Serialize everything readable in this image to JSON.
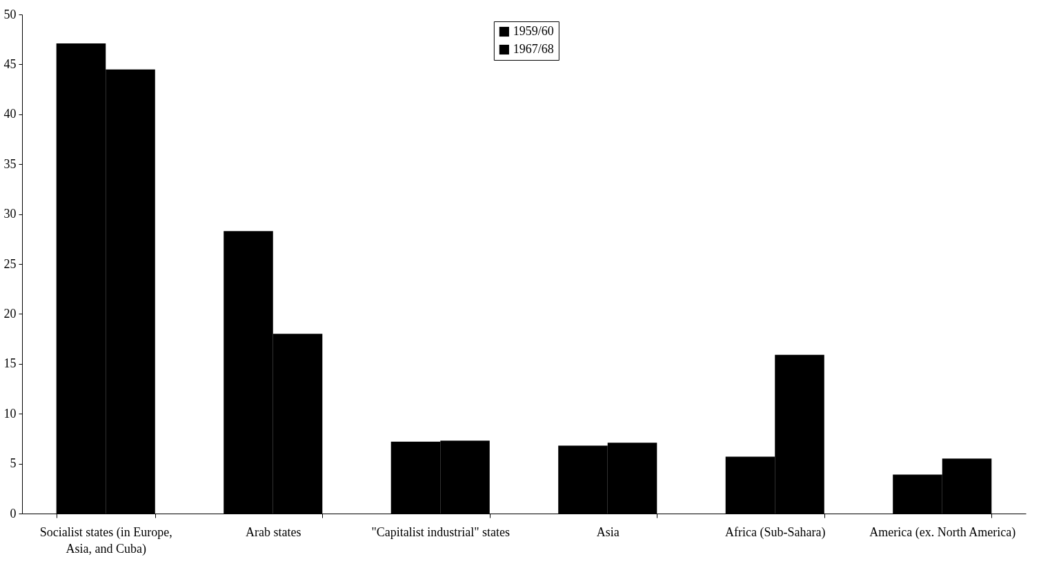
{
  "chart_data": {
    "type": "bar",
    "categories": [
      "Socialist states (in Europe, Asia, and Cuba)",
      "Arab states",
      "\"Capitalist industrial\" states",
      "Asia",
      "Africa (Sub-Sahara)",
      "America (ex. North America)"
    ],
    "series": [
      {
        "name": "1959/60",
        "color": "#000000",
        "values": [
          47.1,
          28.3,
          7.2,
          6.8,
          5.7,
          3.9
        ]
      },
      {
        "name": "1967/68",
        "color": "#000000",
        "values": [
          44.5,
          18.0,
          7.3,
          7.1,
          15.9,
          5.5
        ]
      }
    ],
    "ylim": [
      0,
      50
    ],
    "yticks": [
      0,
      5,
      10,
      15,
      20,
      25,
      30,
      35,
      40,
      45,
      50
    ],
    "grid": false,
    "legend": "top"
  }
}
